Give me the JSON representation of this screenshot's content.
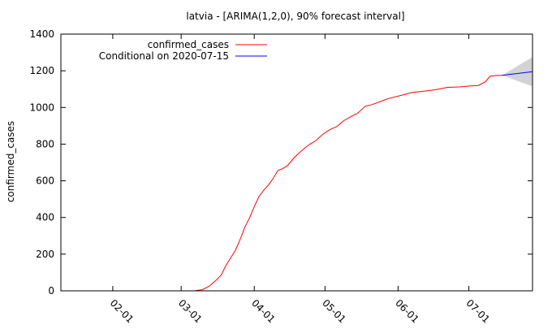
{
  "chart_data": {
    "type": "line",
    "title": "latvia -  [ARIMA(1,2,0), 90% forecast interval]",
    "xlabel": "",
    "ylabel": "confirmed_cases",
    "ylim": [
      0,
      1400
    ],
    "xlim": [
      "2020-01-10",
      "2020-07-28"
    ],
    "yticks": [
      0,
      200,
      400,
      600,
      800,
      1000,
      1200,
      1400
    ],
    "xticks": [
      "02-01",
      "03-01",
      "04-01",
      "05-01",
      "06-01",
      "07-01"
    ],
    "xtick_dates": [
      "2020-02-01",
      "2020-03-01",
      "2020-04-01",
      "2020-05-01",
      "2020-06-01",
      "2020-07-01"
    ],
    "grid": false,
    "legend": "top-left",
    "series": [
      {
        "name": "confirmed_cases",
        "color": "#ff0000",
        "x": [
          "2020-03-07",
          "2020-03-10",
          "2020-03-13",
          "2020-03-16",
          "2020-03-18",
          "2020-03-20",
          "2020-03-22",
          "2020-03-24",
          "2020-03-26",
          "2020-03-28",
          "2020-03-30",
          "2020-04-01",
          "2020-04-03",
          "2020-04-05",
          "2020-04-07",
          "2020-04-09",
          "2020-04-11",
          "2020-04-13",
          "2020-04-15",
          "2020-04-18",
          "2020-04-21",
          "2020-04-24",
          "2020-04-27",
          "2020-04-30",
          "2020-05-03",
          "2020-05-06",
          "2020-05-09",
          "2020-05-12",
          "2020-05-15",
          "2020-05-18",
          "2020-05-21",
          "2020-05-24",
          "2020-05-28",
          "2020-06-02",
          "2020-06-07",
          "2020-06-12",
          "2020-06-17",
          "2020-06-22",
          "2020-06-27",
          "2020-07-02",
          "2020-07-05",
          "2020-07-08",
          "2020-07-10",
          "2020-07-12",
          "2020-07-15"
        ],
        "values": [
          1,
          6,
          26,
          60,
          86,
          139,
          180,
          221,
          280,
          347,
          398,
          458,
          514,
          548,
          577,
          612,
          656,
          666,
          682,
          727,
          763,
          795,
          818,
          853,
          879,
          896,
          928,
          950,
          970,
          1006,
          1016,
          1030,
          1049,
          1065,
          1082,
          1089,
          1097,
          1110,
          1112,
          1118,
          1120,
          1140,
          1170,
          1174,
          1175
        ]
      },
      {
        "name": "Conditional on 2020-07-15",
        "color": "#0000ff",
        "x": [
          "2020-07-15",
          "2020-07-28"
        ],
        "values": [
          1175,
          1195
        ],
        "interval_lower": [
          1175,
          1115
        ],
        "interval_upper": [
          1175,
          1275
        ]
      }
    ]
  }
}
